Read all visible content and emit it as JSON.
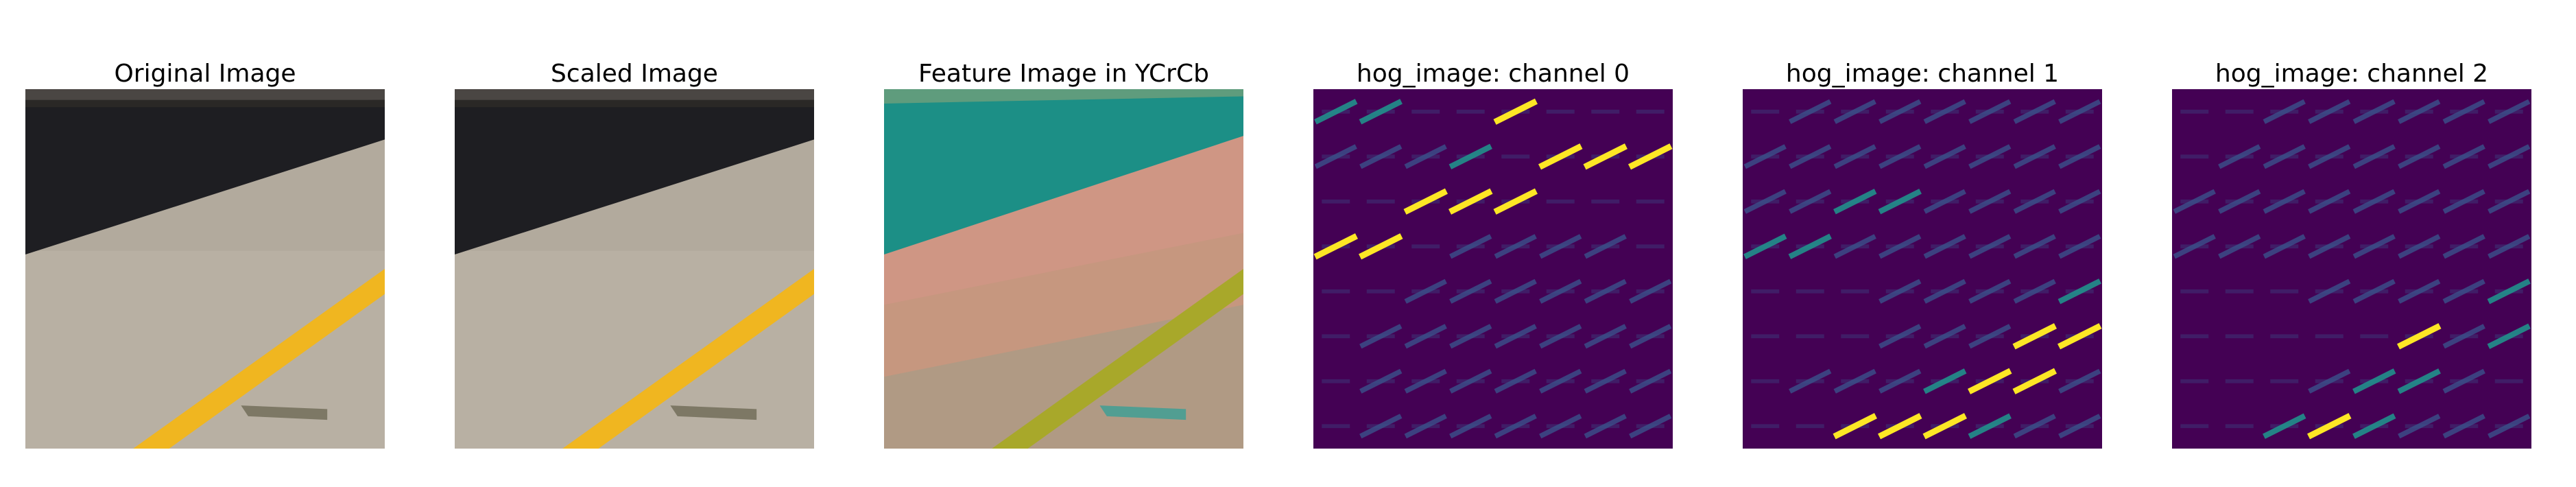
{
  "panels": [
    {
      "title": "Original Image"
    },
    {
      "title": "Scaled Image"
    },
    {
      "title": "Feature Image in YCrCb"
    },
    {
      "title": "hog_image: channel 0"
    },
    {
      "title": "hog_image: channel 1"
    },
    {
      "title": "hog_image: channel 2"
    }
  ],
  "colors": {
    "background": "#ffffff",
    "wall_dark": "#1e1e22",
    "wall_top": "#4a4643",
    "road": "#b2aa9d",
    "lane_line": "#f0b620",
    "ycrcb_teal": "#1c8f86",
    "ycrcb_salmon": "#cf9684",
    "ycrcb_tan": "#b09a84",
    "ycrcb_line": "#a8a82a",
    "hog_bg": "#440154",
    "hog_low": "#3b528b",
    "hog_mid": "#21918c",
    "hog_high": "#fde725"
  }
}
